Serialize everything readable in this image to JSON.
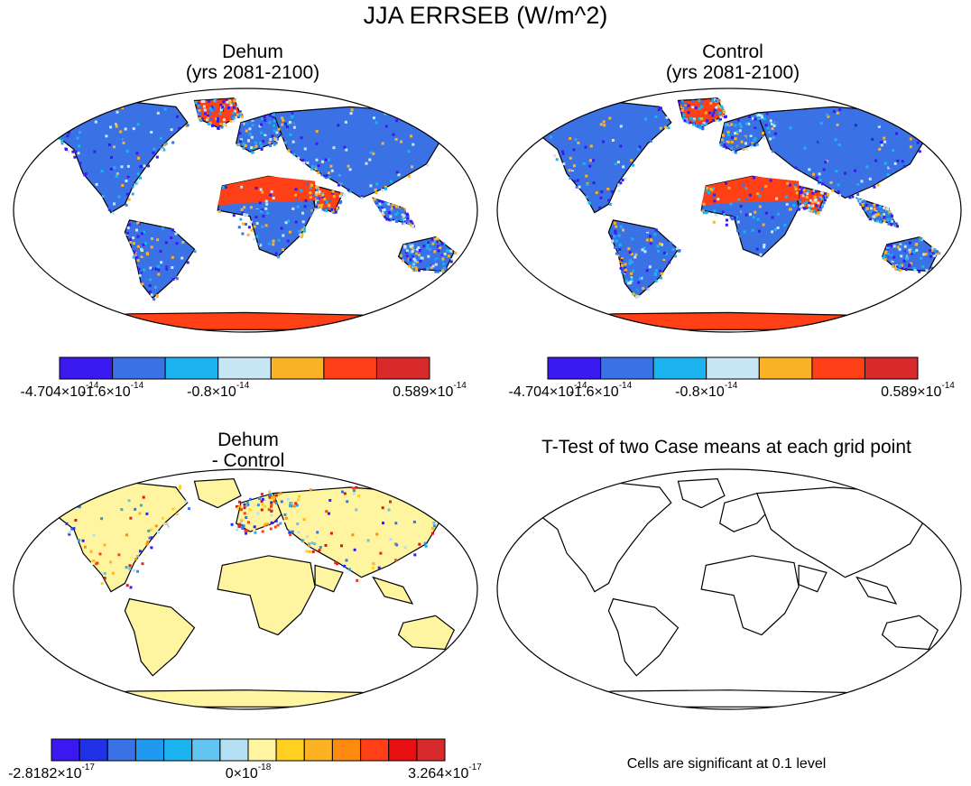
{
  "title": "JJA ERRSEB (W/m^2)",
  "panels": [
    {
      "id": "dehum",
      "title_line1": "Dehum",
      "title_line2": "(yrs 2081-2100)"
    },
    {
      "id": "control",
      "title_line1": "Control",
      "title_line2": "(yrs 2081-2100)"
    },
    {
      "id": "diff",
      "title_line1": "Dehum",
      "title_line2": "- Control"
    },
    {
      "id": "ttest",
      "title_line1": "T-Test of two Case means at each grid point",
      "title_line2": ""
    }
  ],
  "colorbar_top": {
    "colors": [
      "#3a18f0",
      "#3a72e6",
      "#1cb4f0",
      "#c7e6f6",
      "#fbb224",
      "#ff4016",
      "#d82a2a"
    ],
    "labels": [
      {
        "mantissa": "-4.704×10",
        "exp": "-14"
      },
      {
        "mantissa": "-1.6×10",
        "exp": "-14"
      },
      {
        "mantissa": "-0.8×10",
        "exp": "-14"
      },
      {
        "mantissa": "0.589×10",
        "exp": "-14"
      }
    ]
  },
  "colorbar_diff": {
    "colors": [
      "#3a18f0",
      "#1f32e8",
      "#3a72e6",
      "#1f9af0",
      "#1cb4f0",
      "#62c4f0",
      "#b4e0f4",
      "#fff5a0",
      "#ffd020",
      "#fbb224",
      "#ff8a10",
      "#ff4016",
      "#e81010",
      "#d82a2a"
    ],
    "labels": [
      {
        "mantissa": "-2.8182×10",
        "exp": "-17"
      },
      {
        "mantissa": "0×10",
        "exp": "-18"
      },
      {
        "mantissa": "3.264×10",
        "exp": "-17"
      }
    ]
  },
  "significance_note": "Cells are significant at 0.1 level",
  "map_projection": "robinson",
  "diff_fill_color": "#fff5a0"
}
